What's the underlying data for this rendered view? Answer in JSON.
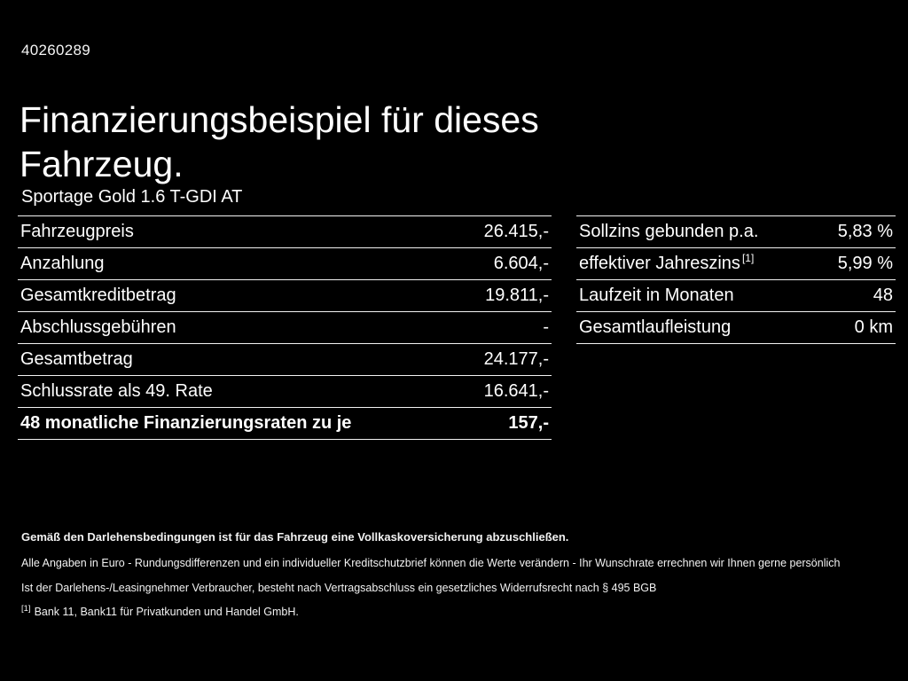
{
  "page": {
    "doc_id": "40260289",
    "title_line1": "Finanzierungsbeispiel für dieses",
    "title_line2": "Fahrzeug.",
    "model": "Sportage Gold 1.6 T-GDI AT"
  },
  "financing_table": {
    "rows": [
      {
        "label": "Fahrzeugpreis",
        "value": "26.415,-"
      },
      {
        "label": "Anzahlung",
        "value": "6.604,-"
      },
      {
        "label": "Gesamtkreditbetrag",
        "value": "19.811,-"
      },
      {
        "label": "Abschlussgebühren",
        "value": "-"
      },
      {
        "label": "Gesamtbetrag",
        "value": "24.177,-"
      },
      {
        "label": "Schlussrate als 49. Rate",
        "value": "16.641,-"
      },
      {
        "label": "48 monatliche Finanzierungsraten zu je",
        "value": "157,-"
      }
    ]
  },
  "conditions_table": {
    "rows": [
      {
        "label": "Sollzins gebunden p.a.",
        "note": "",
        "value": "5,83 %"
      },
      {
        "label": "effektiver Jahreszins",
        "note": "[1]",
        "value": "5,99 %"
      },
      {
        "label": "Laufzeit in Monaten",
        "note": "",
        "value": "48"
      },
      {
        "label": "Gesamtlaufleistung",
        "note": "",
        "value": "0 km"
      }
    ]
  },
  "footer": {
    "line1": "Gemäß den Darlehensbedingungen ist für das Fahrzeug eine Vollkaskoversicherung abzuschließen.",
    "line2": "Alle Angaben in Euro - Rundungsdifferenzen und ein individueller Kreditschutzbrief können die Werte verändern - Ihr Wunschrate errechnen wir Ihnen gerne persönlich",
    "line3": "Ist der Darlehens-/Leasingnehmer Verbraucher, besteht nach Vertragsabschluss ein gesetzliches Widerrufsrecht nach § 495 BGB",
    "footnote_marker": "[1]",
    "footnote_text": "Bank 11, Bank11 für Privatkunden und Handel GmbH."
  }
}
